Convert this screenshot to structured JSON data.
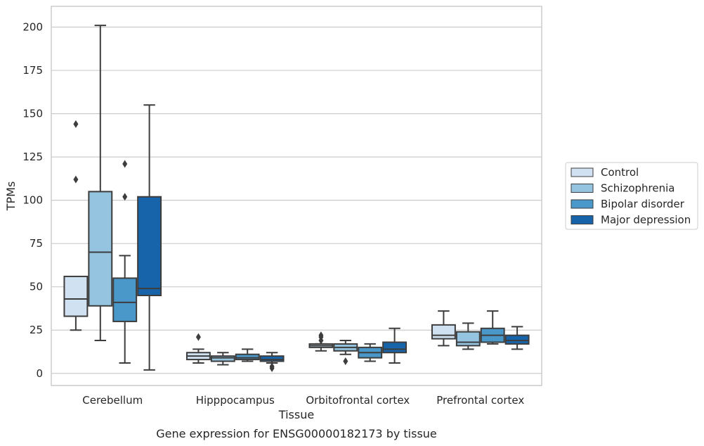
{
  "chart_data": {
    "type": "box",
    "title": "",
    "xlabel": "Tissue",
    "ylabel": "TPMs",
    "caption": "Gene expression for ENSG00000182173 by tissue",
    "ylim": [
      -7,
      212
    ],
    "yticks": [
      0,
      25,
      50,
      75,
      100,
      125,
      150,
      175,
      200
    ],
    "grid": "horizontal",
    "legend_position": "center-right",
    "categories": [
      "Cerebellum",
      "Hipppocampus",
      "Orbitofrontal cortex",
      "Prefrontal cortex"
    ],
    "series": [
      {
        "name": "Control",
        "color": "#d0e1f2",
        "boxes": [
          {
            "whislo": 25,
            "q1": 33,
            "med": 43,
            "q3": 56,
            "whishi": 56,
            "fliers": [
              112,
              144
            ]
          },
          {
            "whislo": 6,
            "q1": 8,
            "med": 10,
            "q3": 12,
            "whishi": 14,
            "fliers": [
              21
            ]
          },
          {
            "whislo": 13,
            "q1": 15,
            "med": 16,
            "q3": 17,
            "whishi": 17,
            "fliers": [
              19,
              21,
              22
            ]
          },
          {
            "whislo": 16,
            "q1": 20,
            "med": 22,
            "q3": 28,
            "whishi": 36,
            "fliers": []
          }
        ]
      },
      {
        "name": "Schizophrenia",
        "color": "#94c4df",
        "boxes": [
          {
            "whislo": 19,
            "q1": 39,
            "med": 70,
            "q3": 105,
            "whishi": 201,
            "fliers": []
          },
          {
            "whislo": 5,
            "q1": 7,
            "med": 9,
            "q3": 10,
            "whishi": 12,
            "fliers": []
          },
          {
            "whislo": 11,
            "q1": 13,
            "med": 15,
            "q3": 17,
            "whishi": 19,
            "fliers": [
              7
            ]
          },
          {
            "whislo": 14,
            "q1": 16,
            "med": 18,
            "q3": 24,
            "whishi": 29,
            "fliers": []
          }
        ]
      },
      {
        "name": "Bipolar disorder",
        "color": "#4a98c9",
        "boxes": [
          {
            "whislo": 6,
            "q1": 30,
            "med": 41,
            "q3": 55,
            "whishi": 68,
            "fliers": [
              102,
              121
            ]
          },
          {
            "whislo": 7,
            "q1": 8,
            "med": 9,
            "q3": 11,
            "whishi": 14,
            "fliers": []
          },
          {
            "whislo": 7,
            "q1": 9,
            "med": 12,
            "q3": 15,
            "whishi": 17,
            "fliers": []
          },
          {
            "whislo": 17,
            "q1": 18,
            "med": 22,
            "q3": 26,
            "whishi": 36,
            "fliers": []
          }
        ]
      },
      {
        "name": "Major depression",
        "color": "#1764ab",
        "boxes": [
          {
            "whislo": 2,
            "q1": 45,
            "med": 49,
            "q3": 102,
            "whishi": 155,
            "fliers": []
          },
          {
            "whislo": 6,
            "q1": 7,
            "med": 8,
            "q3": 10,
            "whishi": 12,
            "fliers": [
              3,
              4
            ]
          },
          {
            "whislo": 6,
            "q1": 12,
            "med": 14,
            "q3": 18,
            "whishi": 26,
            "fliers": []
          },
          {
            "whislo": 14,
            "q1": 17,
            "med": 19,
            "q3": 22,
            "whishi": 27,
            "fliers": []
          }
        ]
      }
    ]
  }
}
